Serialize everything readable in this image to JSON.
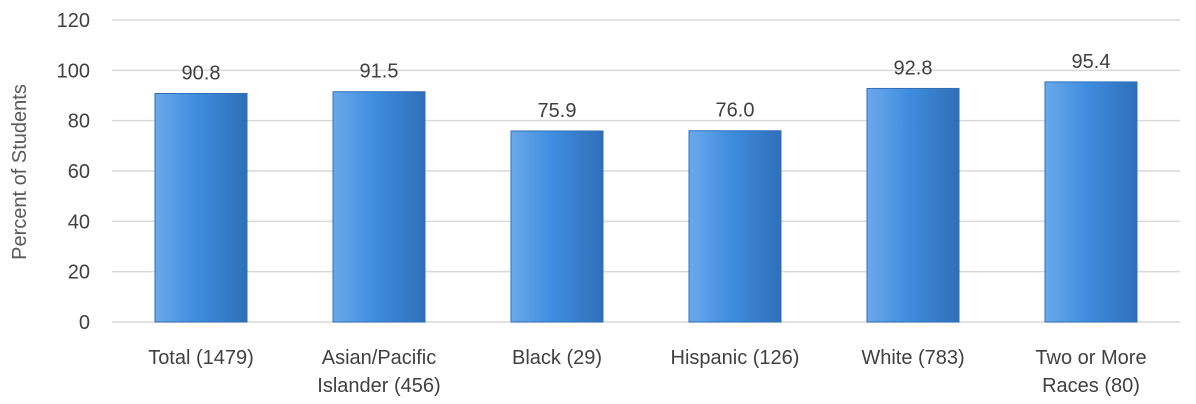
{
  "chart_data": {
    "type": "bar",
    "categories": [
      [
        "Total (1479)"
      ],
      [
        "Asian/Pacific",
        "Islander (456)"
      ],
      [
        "Black (29)"
      ],
      [
        "Hispanic (126)"
      ],
      [
        "White (783)"
      ],
      [
        "Two or More",
        "Races (80)"
      ]
    ],
    "values": [
      90.8,
      91.5,
      75.9,
      76.0,
      92.8,
      95.4
    ],
    "data_labels": [
      "90.8",
      "91.5",
      "75.9",
      "76.0",
      "92.8",
      "95.4"
    ],
    "title": "",
    "xlabel": "",
    "ylabel": "Percent of Students",
    "ylim": [
      0,
      120
    ],
    "yticks": [
      0,
      20,
      40,
      60,
      80,
      100,
      120
    ],
    "grid": true,
    "legend": "none",
    "colors": {
      "bar_light": "#6aa9ea",
      "bar_mid": "#3f8ddf",
      "bar_dark": "#2f6fb8",
      "grid": "#d9d9d9",
      "text": "#404040"
    }
  }
}
